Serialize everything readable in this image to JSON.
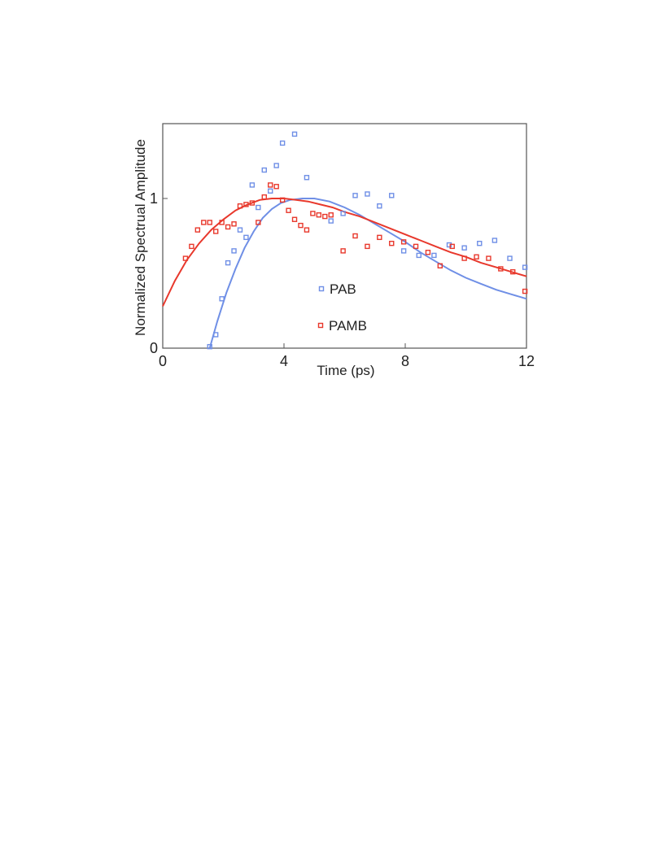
{
  "chart_data": {
    "type": "scatter",
    "title": "",
    "xlabel": "Time (ps)",
    "ylabel": "Normalized Spectrual Amplitude",
    "xlim": [
      0,
      12
    ],
    "ylim": [
      0,
      1.5
    ],
    "xticks": [
      "0",
      "4",
      "8",
      "12"
    ],
    "xtick_values": [
      0,
      4,
      8,
      12
    ],
    "yticks": [
      "0",
      "1"
    ],
    "ytick_values": [
      0,
      1
    ],
    "grid": false,
    "legend_position": "center",
    "series": [
      {
        "name": "PAB",
        "color": "#6f8fe6",
        "marker": "square-open",
        "points": [
          [
            1.55,
            0.01
          ],
          [
            1.75,
            0.09
          ],
          [
            1.95,
            0.33
          ],
          [
            2.15,
            0.57
          ],
          [
            2.35,
            0.65
          ],
          [
            2.55,
            0.79
          ],
          [
            2.75,
            0.74
          ],
          [
            2.95,
            1.09
          ],
          [
            3.15,
            0.94
          ],
          [
            3.35,
            1.19
          ],
          [
            3.55,
            1.05
          ],
          [
            3.75,
            1.22
          ],
          [
            3.95,
            1.37
          ],
          [
            4.35,
            1.43
          ],
          [
            4.75,
            1.14
          ],
          [
            5.55,
            0.85
          ],
          [
            5.95,
            0.9
          ],
          [
            6.35,
            1.02
          ],
          [
            6.75,
            1.03
          ],
          [
            7.15,
            0.95
          ],
          [
            7.55,
            1.02
          ],
          [
            7.95,
            0.65
          ],
          [
            8.45,
            0.62
          ],
          [
            8.95,
            0.62
          ],
          [
            9.45,
            0.69
          ],
          [
            9.95,
            0.67
          ],
          [
            10.45,
            0.7
          ],
          [
            10.95,
            0.72
          ],
          [
            11.45,
            0.6
          ],
          [
            11.95,
            0.54
          ]
        ],
        "fit": [
          [
            1.55,
            0.0
          ],
          [
            1.8,
            0.18
          ],
          [
            2.1,
            0.37
          ],
          [
            2.4,
            0.53
          ],
          [
            2.7,
            0.67
          ],
          [
            3.0,
            0.78
          ],
          [
            3.3,
            0.87
          ],
          [
            3.6,
            0.93
          ],
          [
            3.9,
            0.97
          ],
          [
            4.2,
            0.99
          ],
          [
            4.6,
            1.0
          ],
          [
            5.0,
            1.0
          ],
          [
            5.5,
            0.98
          ],
          [
            6.0,
            0.94
          ],
          [
            6.5,
            0.89
          ],
          [
            7.0,
            0.83
          ],
          [
            7.5,
            0.77
          ],
          [
            8.0,
            0.71
          ],
          [
            8.5,
            0.64
          ],
          [
            9.0,
            0.58
          ],
          [
            9.5,
            0.52
          ],
          [
            10.0,
            0.47
          ],
          [
            10.5,
            0.43
          ],
          [
            11.0,
            0.39
          ],
          [
            11.5,
            0.36
          ],
          [
            12.0,
            0.33
          ]
        ]
      },
      {
        "name": "PAMB",
        "color": "#e8382c",
        "marker": "square-open",
        "points": [
          [
            0.75,
            0.6
          ],
          [
            0.95,
            0.68
          ],
          [
            1.15,
            0.79
          ],
          [
            1.35,
            0.84
          ],
          [
            1.55,
            0.84
          ],
          [
            1.75,
            0.78
          ],
          [
            1.95,
            0.84
          ],
          [
            2.15,
            0.81
          ],
          [
            2.35,
            0.83
          ],
          [
            2.55,
            0.95
          ],
          [
            2.75,
            0.96
          ],
          [
            2.95,
            0.97
          ],
          [
            3.15,
            0.84
          ],
          [
            3.35,
            1.01
          ],
          [
            3.55,
            1.09
          ],
          [
            3.75,
            1.08
          ],
          [
            3.95,
            0.99
          ],
          [
            4.15,
            0.92
          ],
          [
            4.35,
            0.86
          ],
          [
            4.55,
            0.82
          ],
          [
            4.75,
            0.79
          ],
          [
            4.95,
            0.9
          ],
          [
            5.15,
            0.89
          ],
          [
            5.35,
            0.88
          ],
          [
            5.55,
            0.89
          ],
          [
            5.95,
            0.65
          ],
          [
            6.35,
            0.75
          ],
          [
            6.75,
            0.68
          ],
          [
            7.15,
            0.74
          ],
          [
            7.55,
            0.7
          ],
          [
            7.95,
            0.71
          ],
          [
            8.35,
            0.68
          ],
          [
            8.75,
            0.64
          ],
          [
            9.15,
            0.55
          ],
          [
            9.55,
            0.68
          ],
          [
            9.95,
            0.6
          ],
          [
            10.35,
            0.61
          ],
          [
            10.75,
            0.6
          ],
          [
            11.15,
            0.53
          ],
          [
            11.55,
            0.51
          ],
          [
            11.95,
            0.38
          ]
        ],
        "fit": [
          [
            0,
            0.28
          ],
          [
            0.4,
            0.45
          ],
          [
            0.8,
            0.59
          ],
          [
            1.2,
            0.7
          ],
          [
            1.6,
            0.79
          ],
          [
            2.0,
            0.86
          ],
          [
            2.4,
            0.92
          ],
          [
            2.8,
            0.96
          ],
          [
            3.2,
            0.99
          ],
          [
            3.6,
            1.0
          ],
          [
            4.0,
            1.0
          ],
          [
            4.4,
            0.99
          ],
          [
            4.8,
            0.98
          ],
          [
            5.2,
            0.96
          ],
          [
            5.6,
            0.94
          ],
          [
            6.0,
            0.91
          ],
          [
            6.5,
            0.88
          ],
          [
            7.0,
            0.84
          ],
          [
            7.5,
            0.8
          ],
          [
            8.0,
            0.76
          ],
          [
            8.5,
            0.72
          ],
          [
            9.0,
            0.68
          ],
          [
            9.5,
            0.64
          ],
          [
            10.0,
            0.61
          ],
          [
            10.5,
            0.57
          ],
          [
            11.0,
            0.54
          ],
          [
            11.5,
            0.51
          ],
          [
            12.0,
            0.48
          ]
        ]
      }
    ]
  }
}
